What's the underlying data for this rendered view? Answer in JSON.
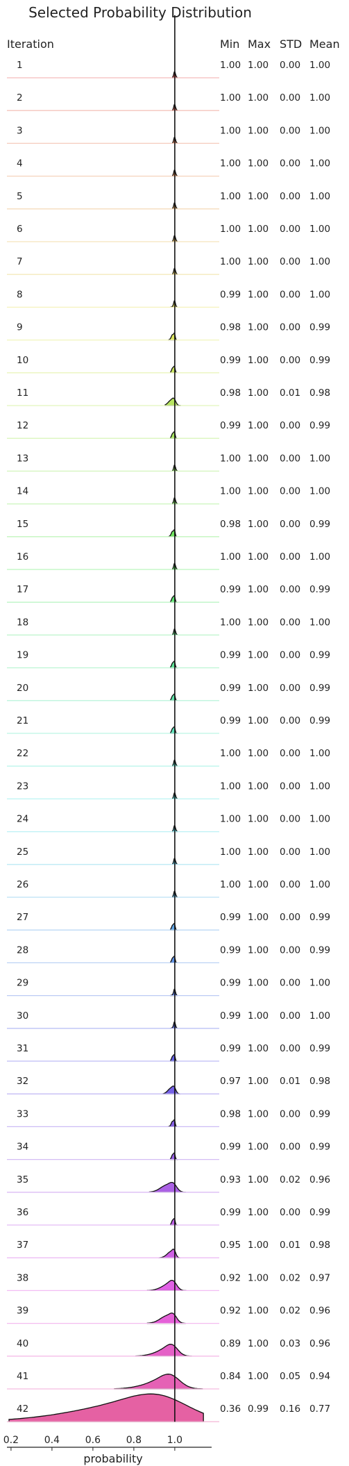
{
  "chart_data": {
    "type": "ridgeline",
    "title": "Selected Probability Distribution",
    "xlabel": "probability",
    "xlim": [
      0.18,
      1.18
    ],
    "xticks": [
      "0.2",
      "0.4",
      "0.6",
      "0.8",
      "1.0"
    ],
    "columns": {
      "iteration": "Iteration",
      "min": "Min",
      "max": "Max",
      "std": "STD",
      "mean": "Mean"
    },
    "rows": [
      {
        "iteration": "1",
        "min": "1.00",
        "max": "1.00",
        "std": "0.00",
        "mean": "1.00"
      },
      {
        "iteration": "2",
        "min": "1.00",
        "max": "1.00",
        "std": "0.00",
        "mean": "1.00"
      },
      {
        "iteration": "3",
        "min": "1.00",
        "max": "1.00",
        "std": "0.00",
        "mean": "1.00"
      },
      {
        "iteration": "4",
        "min": "1.00",
        "max": "1.00",
        "std": "0.00",
        "mean": "1.00"
      },
      {
        "iteration": "5",
        "min": "1.00",
        "max": "1.00",
        "std": "0.00",
        "mean": "1.00"
      },
      {
        "iteration": "6",
        "min": "1.00",
        "max": "1.00",
        "std": "0.00",
        "mean": "1.00"
      },
      {
        "iteration": "7",
        "min": "1.00",
        "max": "1.00",
        "std": "0.00",
        "mean": "1.00"
      },
      {
        "iteration": "8",
        "min": "0.99",
        "max": "1.00",
        "std": "0.00",
        "mean": "1.00"
      },
      {
        "iteration": "9",
        "min": "0.98",
        "max": "1.00",
        "std": "0.00",
        "mean": "0.99"
      },
      {
        "iteration": "10",
        "min": "0.99",
        "max": "1.00",
        "std": "0.00",
        "mean": "0.99"
      },
      {
        "iteration": "11",
        "min": "0.98",
        "max": "1.00",
        "std": "0.01",
        "mean": "0.98"
      },
      {
        "iteration": "12",
        "min": "0.99",
        "max": "1.00",
        "std": "0.00",
        "mean": "0.99"
      },
      {
        "iteration": "13",
        "min": "1.00",
        "max": "1.00",
        "std": "0.00",
        "mean": "1.00"
      },
      {
        "iteration": "14",
        "min": "1.00",
        "max": "1.00",
        "std": "0.00",
        "mean": "1.00"
      },
      {
        "iteration": "15",
        "min": "0.98",
        "max": "1.00",
        "std": "0.00",
        "mean": "0.99"
      },
      {
        "iteration": "16",
        "min": "1.00",
        "max": "1.00",
        "std": "0.00",
        "mean": "1.00"
      },
      {
        "iteration": "17",
        "min": "0.99",
        "max": "1.00",
        "std": "0.00",
        "mean": "0.99"
      },
      {
        "iteration": "18",
        "min": "1.00",
        "max": "1.00",
        "std": "0.00",
        "mean": "1.00"
      },
      {
        "iteration": "19",
        "min": "0.99",
        "max": "1.00",
        "std": "0.00",
        "mean": "0.99"
      },
      {
        "iteration": "20",
        "min": "0.99",
        "max": "1.00",
        "std": "0.00",
        "mean": "0.99"
      },
      {
        "iteration": "21",
        "min": "0.99",
        "max": "1.00",
        "std": "0.00",
        "mean": "0.99"
      },
      {
        "iteration": "22",
        "min": "1.00",
        "max": "1.00",
        "std": "0.00",
        "mean": "1.00"
      },
      {
        "iteration": "23",
        "min": "1.00",
        "max": "1.00",
        "std": "0.00",
        "mean": "1.00"
      },
      {
        "iteration": "24",
        "min": "1.00",
        "max": "1.00",
        "std": "0.00",
        "mean": "1.00"
      },
      {
        "iteration": "25",
        "min": "1.00",
        "max": "1.00",
        "std": "0.00",
        "mean": "1.00"
      },
      {
        "iteration": "26",
        "min": "1.00",
        "max": "1.00",
        "std": "0.00",
        "mean": "1.00"
      },
      {
        "iteration": "27",
        "min": "0.99",
        "max": "1.00",
        "std": "0.00",
        "mean": "0.99"
      },
      {
        "iteration": "28",
        "min": "0.99",
        "max": "1.00",
        "std": "0.00",
        "mean": "0.99"
      },
      {
        "iteration": "29",
        "min": "0.99",
        "max": "1.00",
        "std": "0.00",
        "mean": "1.00"
      },
      {
        "iteration": "30",
        "min": "0.99",
        "max": "1.00",
        "std": "0.00",
        "mean": "1.00"
      },
      {
        "iteration": "31",
        "min": "0.99",
        "max": "1.00",
        "std": "0.00",
        "mean": "0.99"
      },
      {
        "iteration": "32",
        "min": "0.97",
        "max": "1.00",
        "std": "0.01",
        "mean": "0.98"
      },
      {
        "iteration": "33",
        "min": "0.98",
        "max": "1.00",
        "std": "0.00",
        "mean": "0.99"
      },
      {
        "iteration": "34",
        "min": "0.99",
        "max": "1.00",
        "std": "0.00",
        "mean": "0.99"
      },
      {
        "iteration": "35",
        "min": "0.93",
        "max": "1.00",
        "std": "0.02",
        "mean": "0.96"
      },
      {
        "iteration": "36",
        "min": "0.99",
        "max": "1.00",
        "std": "0.00",
        "mean": "0.99"
      },
      {
        "iteration": "37",
        "min": "0.95",
        "max": "1.00",
        "std": "0.01",
        "mean": "0.98"
      },
      {
        "iteration": "38",
        "min": "0.92",
        "max": "1.00",
        "std": "0.02",
        "mean": "0.97"
      },
      {
        "iteration": "39",
        "min": "0.92",
        "max": "1.00",
        "std": "0.02",
        "mean": "0.96"
      },
      {
        "iteration": "40",
        "min": "0.89",
        "max": "1.00",
        "std": "0.03",
        "mean": "0.96"
      },
      {
        "iteration": "41",
        "min": "0.84",
        "max": "1.00",
        "std": "0.05",
        "mean": "0.94"
      },
      {
        "iteration": "42",
        "min": "0.36",
        "max": "0.99",
        "std": "0.16",
        "mean": "0.77"
      }
    ]
  }
}
